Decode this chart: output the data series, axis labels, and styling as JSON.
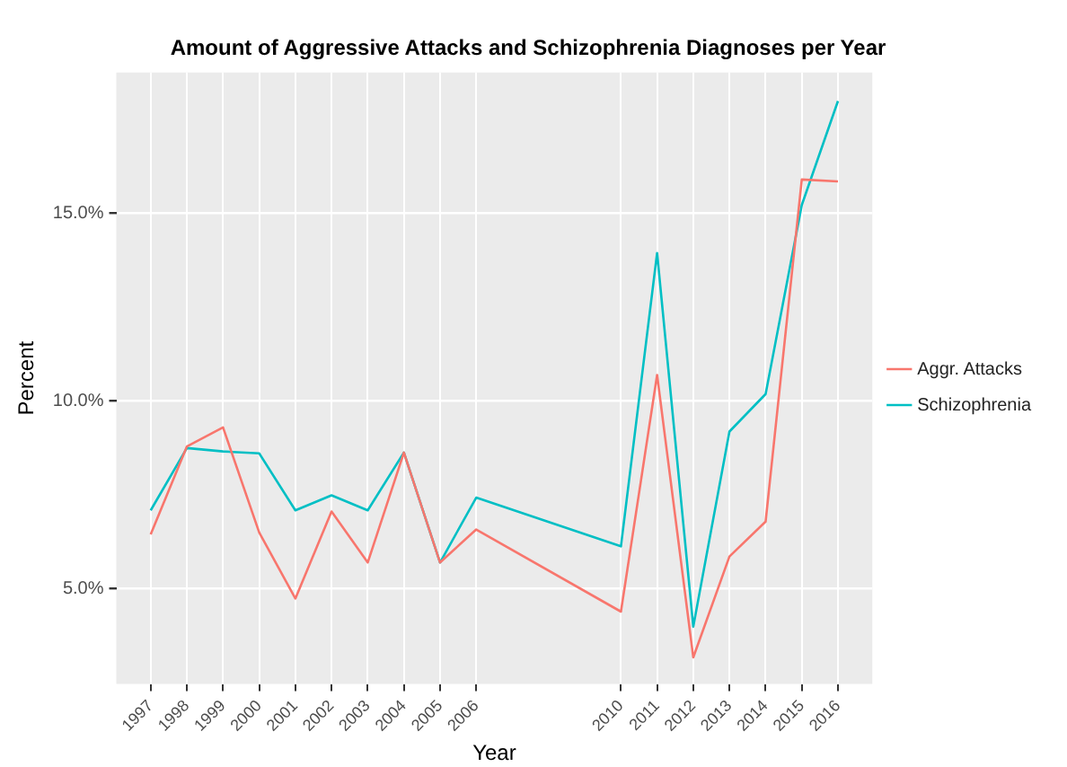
{
  "chart_data": {
    "type": "line",
    "title": "Amount of Aggressive Attacks and Schizophrenia Diagnoses per Year",
    "xlabel": "Year",
    "ylabel": "Percent",
    "x": [
      1997,
      1998,
      1999,
      2000,
      2001,
      2002,
      2003,
      2004,
      2005,
      2006,
      2010,
      2011,
      2012,
      2013,
      2014,
      2015,
      2016
    ],
    "series": [
      {
        "name": "Aggr. Attacks",
        "color": "#f8766d",
        "values": [
          6.44,
          8.78,
          9.29,
          6.49,
          4.73,
          7.05,
          5.69,
          8.62,
          5.69,
          6.57,
          4.38,
          10.69,
          3.16,
          5.85,
          6.78,
          15.9,
          15.85
        ]
      },
      {
        "name": "Schizophrenia",
        "color": "#00bfc4",
        "values": [
          7.08,
          8.74,
          8.65,
          8.6,
          7.08,
          7.48,
          7.08,
          8.62,
          5.69,
          7.42,
          6.12,
          13.94,
          3.98,
          9.18,
          10.18,
          15.22,
          17.99
        ]
      }
    ],
    "xlim": [
      1996.05,
      2016.95
    ],
    "ylim": [
      2.45,
      18.75
    ],
    "xticks": [
      1997,
      1998,
      1999,
      2000,
      2001,
      2002,
      2003,
      2004,
      2005,
      2006,
      2010,
      2011,
      2012,
      2013,
      2014,
      2015,
      2016
    ],
    "yticks": [
      {
        "value": 5,
        "label": "5.0%"
      },
      {
        "value": 10,
        "label": "10.0%"
      },
      {
        "value": 15,
        "label": "15.0%"
      }
    ],
    "grid": true,
    "legend": "right",
    "marker": "none",
    "line_style": "solid"
  }
}
